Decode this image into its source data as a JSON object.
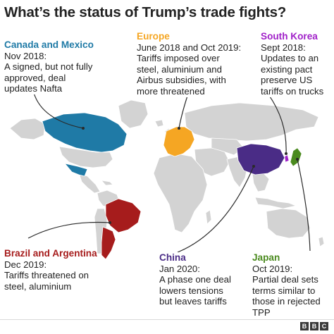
{
  "title": "What’s the status of Trump’s trade fights?",
  "colors": {
    "canada_mexico": "#1f7aa6",
    "europe": "#f5a623",
    "south_korea": "#a020c8",
    "china": "#4a2c86",
    "japan": "#4a8a1e",
    "brazil_argentina": "#a61c1c",
    "land": "#d3d3d3",
    "text": "#222222"
  },
  "callouts": {
    "canada_mexico": {
      "heading": "Canada and Mexico",
      "lines": [
        "Nov 2018:",
        "A signed, but not fully",
        "approved, deal",
        "updates Nafta"
      ]
    },
    "europe": {
      "heading": "Europe",
      "lines": [
        "June 2018 and Oct 2019:",
        "Tariffs imposed over",
        "steel, aluminium and",
        "Airbus subsidies, with",
        "more threatened"
      ]
    },
    "south_korea": {
      "heading": "South Korea",
      "lines": [
        "Sept 2018:",
        "Updates to an",
        "existing pact",
        "preserve US",
        "tariffs on trucks"
      ]
    },
    "brazil_argentina": {
      "heading": "Brazil and Argentina",
      "lines": [
        "Dec 2019:",
        "Tariffs threatened on",
        "steel, aluminium"
      ]
    },
    "china": {
      "heading": "China",
      "lines": [
        "Jan 2020:",
        "A phase one deal",
        "lowers tensions",
        "but leaves tariffs"
      ]
    },
    "japan": {
      "heading": "Japan",
      "lines": [
        "Oct 2019:",
        "Partial deal sets",
        "terms similar to",
        "those in rejected",
        "TPP"
      ]
    }
  },
  "footer": {
    "logo": [
      "B",
      "B",
      "C"
    ]
  }
}
